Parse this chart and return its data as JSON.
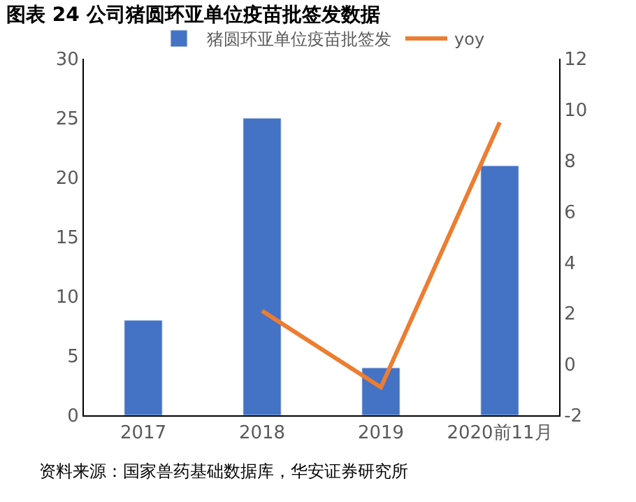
{
  "chart_data": {
    "type": "bar",
    "title": "图表 24 公司猪圆环亚单位疫苗批签发数据",
    "categories": [
      "2017",
      "2018",
      "2019",
      "2020前11月"
    ],
    "series": [
      {
        "name": "猪圆环亚单位疫苗批签发",
        "color": "#4472c4",
        "values": [
          8,
          25,
          4,
          21
        ]
      },
      {
        "name": "yoy",
        "type": "line",
        "axis": "y2",
        "color": "#ed7d31",
        "values": [
          null,
          2.1,
          -0.9,
          9.5
        ]
      }
    ],
    "ylim": [
      0,
      30
    ],
    "yticks": [
      0,
      5,
      10,
      15,
      20,
      25,
      30
    ],
    "y2lim": [
      -2,
      12
    ],
    "y2ticks": [
      -2,
      0,
      2,
      4,
      6,
      8,
      10,
      12
    ],
    "legend": "top",
    "marker": "none",
    "line_style": "solid",
    "annotations": [
      "资料来源：国家兽药基础数据库，华安证券研究所"
    ]
  }
}
